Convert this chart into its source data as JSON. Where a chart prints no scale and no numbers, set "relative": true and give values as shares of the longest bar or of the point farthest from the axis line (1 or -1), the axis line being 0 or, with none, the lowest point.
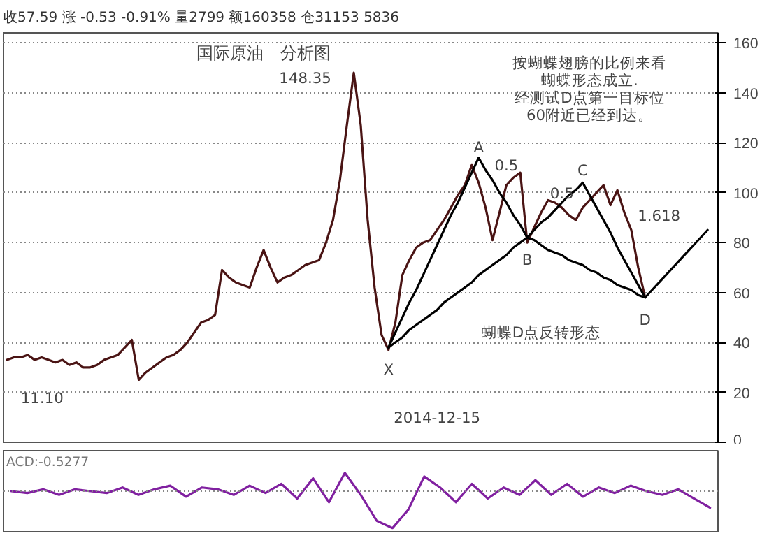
{
  "chart_data": [
    {
      "type": "line",
      "title": "国际原油　分析图",
      "subtitle": "收57.59 涨 -0.53 -0.91% 量2799 额160358 仓31153 5836",
      "categories": [
        null,
        null,
        null,
        null,
        null,
        null,
        null,
        null,
        null,
        null,
        null,
        null,
        null,
        null,
        null,
        null,
        null,
        null,
        null,
        null,
        null,
        null,
        null,
        null,
        null,
        null,
        null,
        null,
        null,
        null,
        null,
        null,
        null,
        null,
        null,
        null,
        null,
        null,
        null,
        null,
        null,
        null,
        null,
        null,
        null,
        null,
        null,
        null,
        null,
        null,
        null,
        null,
        null,
        null,
        null,
        null,
        null,
        null,
        null,
        null,
        null,
        null,
        null,
        null,
        null,
        null,
        null,
        null,
        null,
        null,
        null,
        null,
        null,
        null,
        null,
        null,
        null,
        null,
        null,
        null,
        null,
        null,
        null,
        null,
        null,
        null,
        null,
        null,
        null,
        null,
        null,
        null,
        null,
        null,
        null,
        null,
        null,
        null,
        null,
        null,
        null,
        null
      ],
      "ylim": [
        0,
        164
      ],
      "yticks": [
        0,
        20,
        40,
        60,
        80,
        100,
        120,
        140,
        160
      ],
      "grid": "y",
      "tick_labels": "y",
      "series": [
        {
          "color": "#4a1414",
          "values": [
            33,
            34,
            34,
            35,
            33,
            34,
            33,
            32,
            33,
            31,
            32,
            30,
            30,
            31,
            33,
            34,
            35,
            38,
            41,
            25,
            28,
            30,
            32,
            34,
            35,
            37,
            40,
            44,
            48,
            49,
            51,
            69,
            66,
            64,
            63,
            62,
            70,
            77,
            70,
            64,
            66,
            67,
            69,
            71,
            72,
            73,
            80,
            89,
            105,
            127,
            148,
            127,
            89,
            62,
            43,
            37,
            48,
            67,
            73,
            78,
            80,
            81,
            85,
            89,
            94,
            99,
            103,
            111,
            104,
            94,
            81,
            92,
            103,
            106,
            108,
            80,
            86,
            92,
            97,
            96,
            94,
            91,
            89,
            94,
            97,
            100,
            103,
            95,
            101,
            92,
            85,
            70,
            58,
            null,
            null,
            null,
            null,
            null,
            null,
            null,
            null,
            null
          ]
        },
        {
          "color": "#000000",
          "values": [
            null,
            null,
            null,
            null,
            null,
            null,
            null,
            null,
            null,
            null,
            null,
            null,
            null,
            null,
            null,
            null,
            null,
            null,
            null,
            null,
            null,
            null,
            null,
            null,
            null,
            null,
            null,
            null,
            null,
            null,
            null,
            null,
            null,
            null,
            null,
            null,
            null,
            null,
            null,
            null,
            null,
            null,
            null,
            null,
            null,
            null,
            null,
            null,
            null,
            null,
            null,
            null,
            null,
            null,
            null,
            38,
            44,
            50,
            56,
            61,
            67,
            73,
            79,
            85,
            91,
            96,
            102,
            108,
            114,
            109,
            105,
            100,
            96,
            91,
            87,
            82,
            85,
            88,
            90,
            93,
            96,
            99,
            101,
            104,
            99,
            94,
            89,
            84,
            78,
            73,
            68,
            63,
            58,
            null,
            null,
            null,
            null,
            null,
            null,
            null,
            null,
            null
          ]
        },
        {
          "color": "#000000",
          "values": [
            null,
            null,
            null,
            null,
            null,
            null,
            null,
            null,
            null,
            null,
            null,
            null,
            null,
            null,
            null,
            null,
            null,
            null,
            null,
            null,
            null,
            null,
            null,
            null,
            null,
            null,
            null,
            null,
            null,
            null,
            null,
            null,
            null,
            null,
            null,
            null,
            null,
            null,
            null,
            null,
            null,
            null,
            null,
            null,
            null,
            null,
            null,
            null,
            null,
            null,
            null,
            null,
            null,
            null,
            null,
            38,
            40,
            42,
            45,
            47,
            49,
            51,
            53,
            56,
            58,
            60,
            62,
            64,
            67,
            69,
            71,
            73,
            75,
            78,
            80,
            82,
            81,
            79,
            77,
            76,
            75,
            73,
            72,
            71,
            69,
            68,
            66,
            65,
            63,
            62,
            61,
            59,
            58,
            61,
            64,
            67,
            70,
            73,
            76,
            79,
            82,
            85
          ]
        }
      ],
      "annotations": [
        "148.35",
        "11.10",
        "X",
        "A",
        "B",
        "C",
        "D",
        "0.5",
        "0.5",
        "1.618",
        "按蝴蝶翅膀的比例来看",
        "蝴蝶形态成立.",
        "经测试D点第一目标位",
        "60附近已经到达。",
        "蝴蝶D点反转形态",
        "2014-12-15"
      ]
    },
    {
      "type": "line",
      "relative": true,
      "tick_labels": false,
      "ref_lines": [
        {
          "axis": "y",
          "value": 0,
          "line_style": "dotted",
          "color": "#888888"
        }
      ],
      "annotations": [
        "ACD:-0.5277"
      ],
      "series": [
        {
          "color": "#8020a0",
          "values": [
            0,
            -0.05,
            0.05,
            -0.1,
            0.05,
            0,
            -0.05,
            0.1,
            -0.1,
            0.05,
            0.15,
            -0.15,
            0.1,
            0.05,
            -0.1,
            0.15,
            -0.05,
            0.2,
            -0.2,
            0.35,
            -0.3,
            0.5,
            -0.1,
            -0.8,
            -1,
            -0.5,
            0.4,
            0.1,
            -0.3,
            0.2,
            -0.2,
            0.1,
            -0.1,
            0.3,
            -0.1,
            0.2,
            -0.15,
            0.1,
            -0.05,
            0.15,
            0,
            -0.1,
            0.05,
            -0.2,
            -0.45
          ]
        }
      ]
    }
  ]
}
